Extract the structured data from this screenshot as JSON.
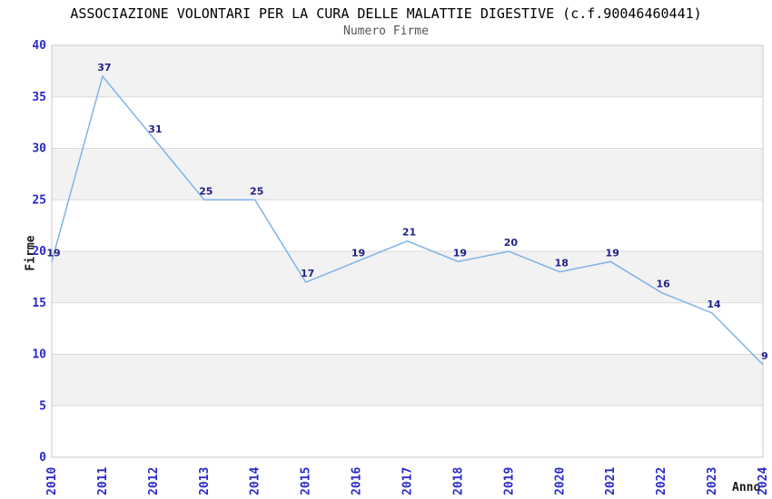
{
  "chart_data": {
    "type": "line",
    "title": "ASSOCIAZIONE VOLONTARI PER LA CURA DELLE MALATTIE DIGESTIVE (c.f.90046460441)",
    "subtitle": "Numero Firme",
    "xlabel": "Anno",
    "ylabel": "Firme",
    "x": [
      "2010",
      "2011",
      "2012",
      "2013",
      "2014",
      "2015",
      "2016",
      "2017",
      "2018",
      "2019",
      "2020",
      "2021",
      "2022",
      "2023",
      "2024"
    ],
    "values": [
      19,
      37,
      31,
      25,
      25,
      17,
      19,
      21,
      19,
      20,
      18,
      19,
      16,
      14,
      9
    ],
    "ylim": [
      0,
      40
    ],
    "yticks": [
      0,
      5,
      10,
      15,
      20,
      25,
      30,
      35,
      40
    ],
    "grid": true,
    "legend": "none",
    "bands": [
      [
        5,
        10
      ],
      [
        15,
        20
      ],
      [
        25,
        30
      ],
      [
        35,
        40
      ]
    ],
    "colors": {
      "line": "#7fb3e8",
      "point_label": "#222288",
      "tick_label": "#2929cc",
      "band": "#f2f2f2",
      "grid": "#d9d9d9",
      "border": "#c9c9c9",
      "title": "#000000",
      "subtitle": "#565656",
      "axis_label": "#1a1a1a"
    }
  }
}
